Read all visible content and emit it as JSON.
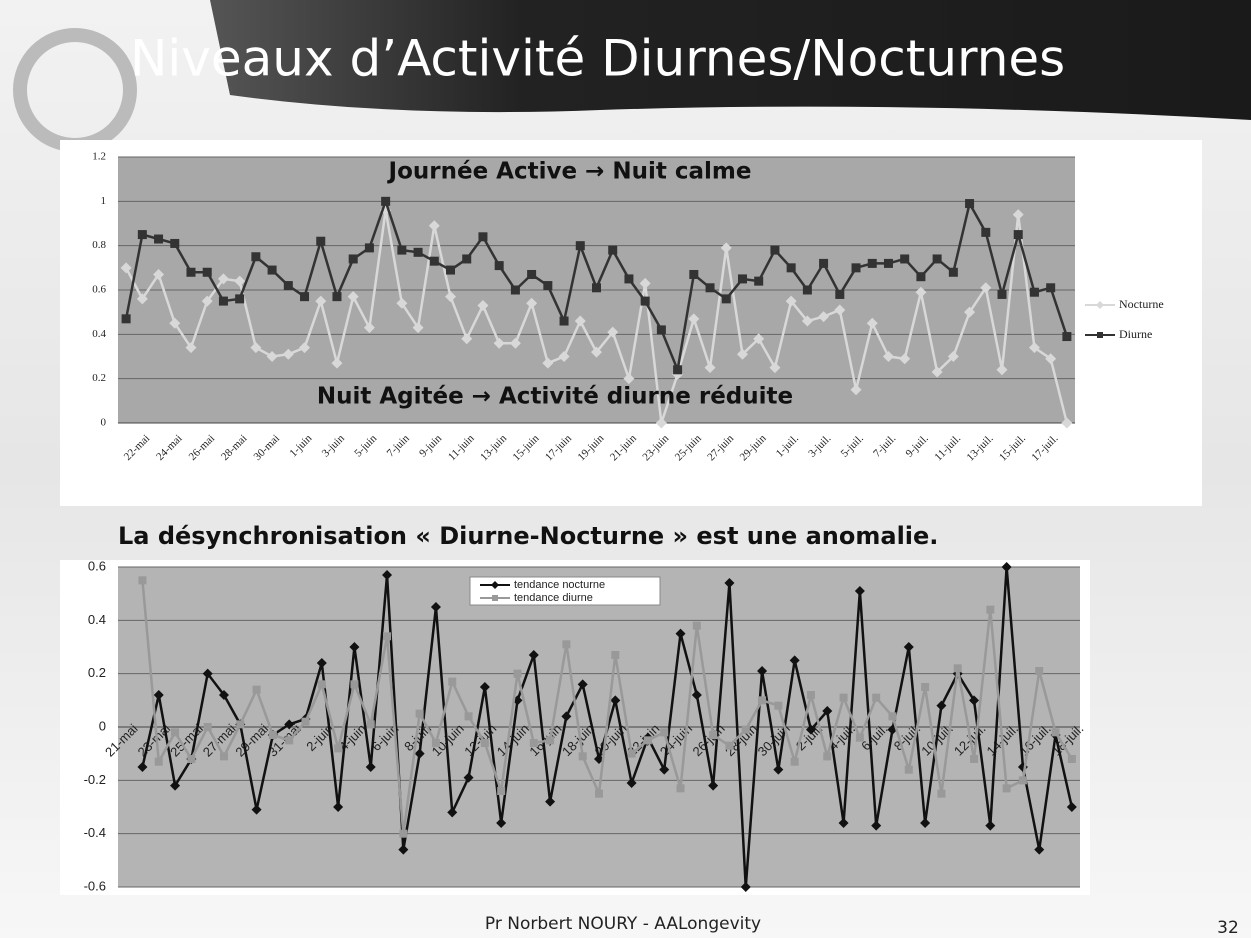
{
  "header": {
    "title": "Niveaux d’Activité Diurnes/Nocturnes"
  },
  "subtitle": "La désynchronisation « Diurne-Nocturne » est une anomalie.",
  "footer": {
    "text": "Pr Norbert NOURY - AALongevity",
    "page_number": "32"
  },
  "chart_data": [
    {
      "type": "line",
      "annotations": [
        "Journée Active → Nuit calme",
        "Nuit Agitée → Activité diurne réduite"
      ],
      "categories": [
        null,
        "22-mai",
        null,
        "24-mai",
        null,
        "26-mai",
        null,
        "28-mai",
        null,
        "30-mai",
        null,
        "1-juin",
        null,
        "3-juin",
        null,
        "5-juin",
        null,
        "7-juin",
        null,
        "9-juin",
        null,
        "11-juin",
        null,
        "13-juin",
        null,
        "15-juin",
        null,
        "17-juin",
        null,
        "19-juin",
        null,
        "21-juin",
        null,
        "23-juin",
        null,
        "25-juin",
        null,
        "27-juin",
        null,
        "29-juin",
        null,
        "1-juil.",
        null,
        "3-juil.",
        null,
        "5-juil.",
        null,
        "7-juil.",
        null,
        "9-juil.",
        null,
        "11-juil.",
        null,
        "13-juil.",
        null,
        "15-juil.",
        null,
        "17-juil.",
        null
      ],
      "series": [
        {
          "name": "Nocturne",
          "color": "#d8d8d8",
          "marker": "diamond",
          "values": [
            0.7,
            0.56,
            0.67,
            0.45,
            0.34,
            0.55,
            0.65,
            0.64,
            0.34,
            0.3,
            0.31,
            0.34,
            0.55,
            0.27,
            0.57,
            0.43,
            0.96,
            0.54,
            0.43,
            0.89,
            0.57,
            0.38,
            0.53,
            0.36,
            0.36,
            0.54,
            0.27,
            0.3,
            0.46,
            0.32,
            0.41,
            0.2,
            0.63,
            0.0,
            0.22,
            0.47,
            0.25,
            0.79,
            0.31,
            0.38,
            0.25,
            0.55,
            0.46,
            0.48,
            0.51,
            0.15,
            0.45,
            0.3,
            0.29,
            0.59,
            0.23,
            0.3,
            0.5,
            0.61,
            0.24,
            0.94,
            0.34,
            0.29,
            0.0
          ]
        },
        {
          "name": "Diurne",
          "color": "#333333",
          "marker": "square",
          "values": [
            0.47,
            0.85,
            0.83,
            0.81,
            0.68,
            0.68,
            0.55,
            0.56,
            0.75,
            0.69,
            0.62,
            0.57,
            0.82,
            0.57,
            0.74,
            0.79,
            1.0,
            0.78,
            0.77,
            0.73,
            0.69,
            0.74,
            0.84,
            0.71,
            0.6,
            0.67,
            0.62,
            0.46,
            0.8,
            0.61,
            0.78,
            0.65,
            0.55,
            0.42,
            0.24,
            0.67,
            0.61,
            0.56,
            0.65,
            0.64,
            0.78,
            0.7,
            0.6,
            0.72,
            0.58,
            0.7,
            0.72,
            0.72,
            0.74,
            0.66,
            0.74,
            0.68,
            0.99,
            0.86,
            0.58,
            0.85,
            0.59,
            0.61,
            0.39
          ]
        }
      ],
      "ylim": [
        0,
        1.2
      ],
      "yticks": [
        0,
        0.2,
        0.4,
        0.6,
        0.8,
        1,
        1.2
      ],
      "grid": true,
      "legend": "right"
    },
    {
      "type": "line",
      "categories": [
        "21-mai",
        null,
        "23-mai",
        null,
        "25-mai",
        null,
        "27-mai",
        null,
        "29-mai",
        null,
        "31-mai",
        null,
        "2-juin",
        null,
        "4-juin",
        null,
        "6-juin",
        null,
        "8-juin",
        null,
        "10-juin",
        null,
        "12-juin",
        null,
        "14-juin",
        null,
        "16-juin",
        null,
        "18-juin",
        null,
        "20-juin",
        null,
        "22-juin",
        null,
        "24-juin",
        null,
        "26-juin",
        null,
        "28-juin",
        null,
        "30-juin",
        null,
        "2-juil.",
        null,
        "4-juil.",
        null,
        "6-juil.",
        null,
        "8-juil.",
        null,
        "10-juil.",
        null,
        "12-juil.",
        null,
        "14-juil.",
        null,
        "16-juil.",
        null,
        "18-juil."
      ],
      "series": [
        {
          "name": "tendance nocturne",
          "color": "#111111",
          "marker": "diamond",
          "values": [
            null,
            -0.15,
            0.12,
            -0.22,
            -0.12,
            0.2,
            0.12,
            0.01,
            -0.31,
            -0.03,
            0.01,
            0.03,
            0.24,
            -0.3,
            0.3,
            -0.15,
            0.57,
            -0.46,
            -0.1,
            0.45,
            -0.32,
            -0.19,
            0.15,
            -0.36,
            0.1,
            0.27,
            -0.28,
            0.04,
            0.16,
            -0.12,
            0.1,
            -0.21,
            -0.04,
            -0.16,
            0.35,
            0.12,
            -0.22,
            0.54,
            -0.6,
            0.21,
            -0.16,
            0.25,
            -0.01,
            0.06,
            -0.36,
            0.51,
            -0.37,
            -0.01,
            0.3,
            -0.36,
            0.08,
            0.2,
            0.1,
            -0.37,
            0.6,
            -0.15,
            -0.46,
            -0.03,
            -0.3
          ]
        },
        {
          "name": "tendance diurne",
          "color": "#999999",
          "marker": "square",
          "values": [
            null,
            0.55,
            -0.13,
            -0.02,
            -0.12,
            0.0,
            -0.11,
            0.01,
            0.14,
            -0.03,
            -0.05,
            0.02,
            0.16,
            -0.08,
            0.16,
            0.01,
            0.34,
            -0.4,
            0.05,
            -0.06,
            0.17,
            0.04,
            -0.06,
            -0.24,
            0.2,
            -0.06,
            -0.05,
            0.31,
            -0.11,
            -0.25,
            0.27,
            -0.1,
            -0.05,
            -0.02,
            -0.23,
            0.38,
            -0.03,
            -0.07,
            -0.01,
            0.1,
            0.08,
            -0.13,
            0.12,
            -0.11,
            0.11,
            -0.04,
            0.11,
            0.04,
            -0.16,
            0.15,
            -0.25,
            0.22,
            -0.12,
            0.44,
            -0.23,
            -0.2,
            0.21,
            -0.02,
            -0.12
          ]
        }
      ],
      "ylim": [
        -0.6,
        0.6
      ],
      "yticks": [
        -0.6,
        -0.4,
        -0.2,
        0,
        0.2,
        0.4,
        0.6
      ],
      "grid": true,
      "legend": "top"
    }
  ]
}
